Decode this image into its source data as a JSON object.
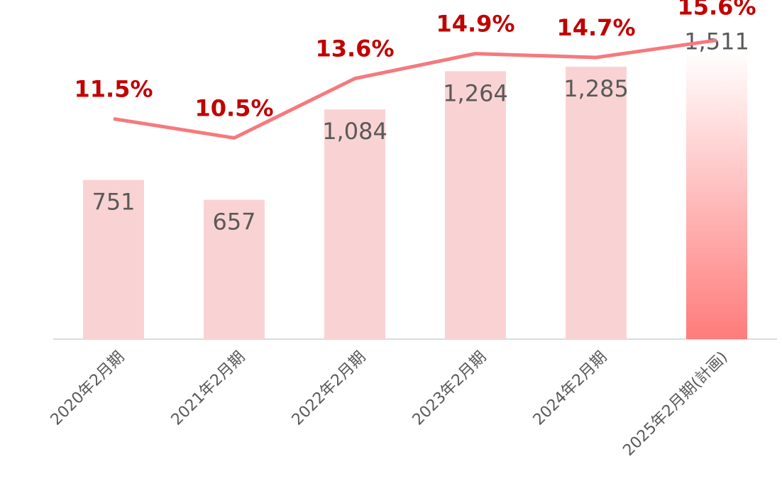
{
  "chart_data": {
    "type": "bar_line",
    "categories": [
      "2020年2月期",
      "2021年2月期",
      "2022年2月期",
      "2023年2月期",
      "2024年2月期",
      "2025年2月期(計画)"
    ],
    "series": [
      {
        "type": "bar",
        "color": "#f9d3d3",
        "highlight_color": "#ff7b7b",
        "values": [
          751,
          657,
          1084,
          1264,
          1285,
          1511
        ],
        "value_labels": [
          "751",
          "657",
          "1,084",
          "1,264",
          "1,285",
          "1,511"
        ]
      },
      {
        "type": "line",
        "axis": "y2",
        "color": "#f47a7e",
        "label_color": "#c00000",
        "values": [
          11.5,
          10.5,
          13.6,
          14.9,
          14.7,
          15.6
        ],
        "value_labels": [
          "11.5%",
          "10.5%",
          "13.6%",
          "14.9%",
          "14.7%",
          "15.6%"
        ]
      }
    ],
    "ylim": [
      0,
      1600
    ],
    "y2lim": [
      0,
      17.7
    ]
  }
}
